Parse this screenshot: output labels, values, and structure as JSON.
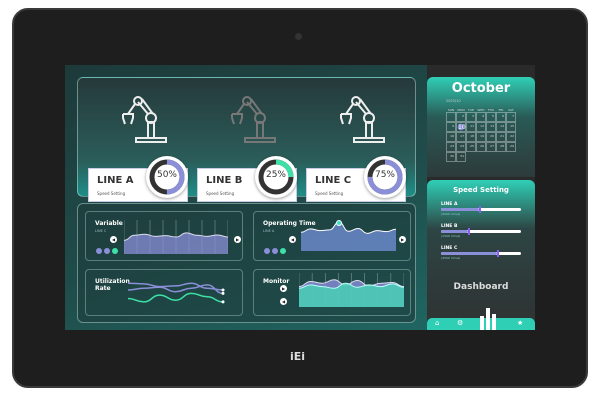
{
  "device": {
    "brand": "iEi"
  },
  "lines": [
    {
      "name": "LINE A",
      "sub": "Speed Setting",
      "percent": 50,
      "label": "50%",
      "color": "#8a8fd8",
      "active": true
    },
    {
      "name": "LINE B",
      "sub": "Speed Setting",
      "percent": 25,
      "label": "25%",
      "color": "#3ee0a8",
      "active": false
    },
    {
      "name": "LINE C",
      "sub": "Speed Setting",
      "percent": 75,
      "label": "75%",
      "color": "#8a8fd8",
      "active": true
    }
  ],
  "charts": {
    "variable": {
      "title": "Variable",
      "subtitle": "LINE C",
      "series": [
        40,
        55,
        58,
        52,
        54,
        50,
        62,
        55,
        52,
        56,
        50
      ]
    },
    "operating": {
      "title": "Operating Time",
      "subtitle": "LINE A",
      "series": [
        55,
        65,
        60,
        62,
        85,
        58,
        66,
        52,
        60,
        57,
        64
      ]
    },
    "utilization": {
      "title": "Utilization Rate",
      "series": [
        [
          70,
          68,
          60,
          62,
          70,
          55,
          50
        ],
        [
          50,
          55,
          58,
          45,
          55,
          65,
          40
        ],
        [
          25,
          15,
          35,
          20,
          40,
          30,
          15
        ]
      ]
    },
    "monitor": {
      "title": "Monitor",
      "series": [
        [
          60,
          75,
          70,
          80,
          65,
          78,
          62,
          70,
          72,
          60
        ],
        [
          45,
          55,
          50,
          45,
          60,
          48,
          55,
          50,
          58,
          48
        ]
      ]
    }
  },
  "calendar": {
    "month": "October",
    "year_month": "2023/10",
    "weekdays": [
      "SUN",
      "MON",
      "TUE",
      "WED",
      "THU",
      "FRI",
      "SAT"
    ],
    "days": [
      "",
      "2",
      "3",
      "4",
      "5",
      "6",
      "7",
      "9",
      "10",
      "11",
      "12",
      "13",
      "14",
      "15",
      "16",
      "17",
      "18",
      "19",
      "20",
      "21",
      "22",
      "23",
      "24",
      "25",
      "26",
      "27",
      "28",
      "29",
      "30",
      "31"
    ],
    "today": "10"
  },
  "speed": {
    "title": "Speed Setting",
    "sliders": [
      {
        "label": "LINE A",
        "value": 0.47,
        "caption": "(3000 mm/s)"
      },
      {
        "label": "LINE B",
        "value": 0.34,
        "caption": "(1500 mm/s)"
      },
      {
        "label": "LINE C",
        "value": 0.7,
        "caption": "(4500 mm/s)"
      }
    ]
  },
  "dashboard": {
    "title": "Dashboard"
  },
  "nav": {
    "icons": [
      "home-icon",
      "gear-icon",
      "star-icon"
    ]
  }
}
